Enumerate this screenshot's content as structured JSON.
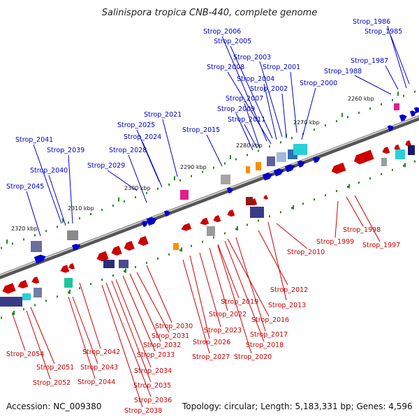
{
  "title": "Salinispora tropica CNB-440, complete genome",
  "accession": "Accession: NC_009380",
  "topology": "Topology: circular; Length: 5,183,331 bp; Genes: 4,596",
  "colors": {
    "forward": "#0000cc",
    "reverse": "#cc0000",
    "backbone": "#777777",
    "tick": "#228b22"
  },
  "scale_labels": [
    "2260 kbp",
    "2270 kbp",
    "2280 kbp",
    "2290 kbp",
    "2300 kbp",
    "2310 kbp",
    "2320 kbp"
  ],
  "forward_labels": [
    "Strop_1986",
    "Strop_1985",
    "Strop_2006",
    "Strop_2005",
    "Strop_2003",
    "Strop_2001",
    "Strop_2008",
    "Strop_1987",
    "Strop_1988",
    "Strop_2004",
    "Strop_2002",
    "Strop_2000",
    "Strop_2007",
    "Strop_2009",
    "Strop_2021",
    "Strop_2011",
    "Strop_2025",
    "Strop_2015",
    "Strop_2024",
    "Strop_2041",
    "Strop_2039",
    "Strop_2028",
    "Strop_2029",
    "Strop_2040",
    "Strop_2045"
  ],
  "reverse_labels": [
    "Strop_2010",
    "Strop_1999",
    "Strop_1998",
    "Strop_1997",
    "Strop_2012",
    "Strop_2013",
    "Strop_2019",
    "Strop_2022",
    "Strop_2016",
    "Strop_2030",
    "Strop_2023",
    "Strop_2017",
    "Strop_2031",
    "Strop_2026",
    "Strop_2018",
    "Strop_2032",
    "Strop_2042",
    "Strop_2054",
    "Strop_2033",
    "Strop_2027",
    "Strop_2020",
    "Strop_2051",
    "Strop_2043",
    "Strop_2034",
    "Strop_2052",
    "Strop_2044",
    "Strop_2035",
    "Strop_2036",
    "Strop_2038"
  ]
}
